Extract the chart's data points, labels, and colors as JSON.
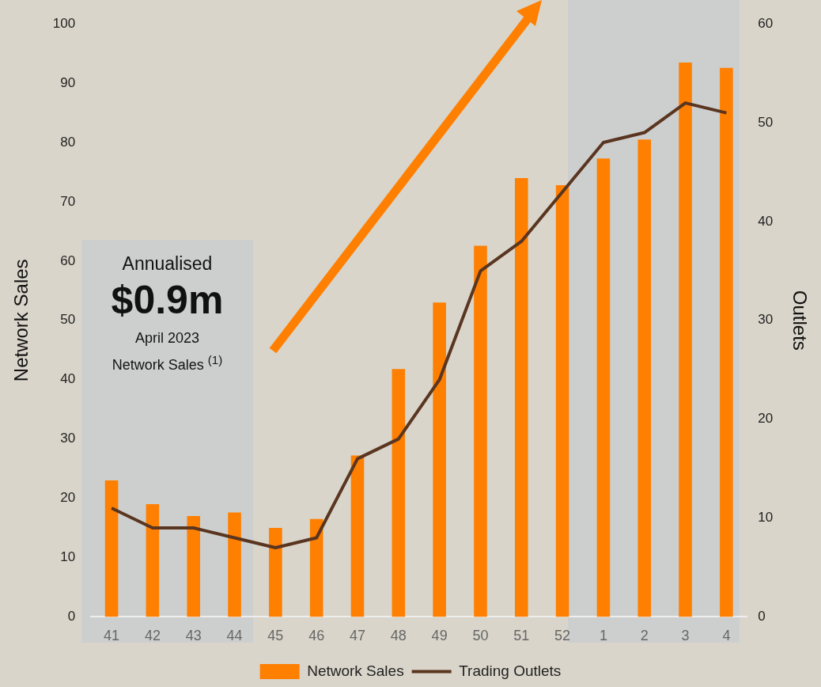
{
  "chart_data": {
    "type": "bar",
    "ylabel": "Network Sales",
    "y2label": "Outlets",
    "categories": [
      "41",
      "42",
      "43",
      "44",
      "45",
      "46",
      "47",
      "48",
      "49",
      "50",
      "51",
      "52",
      "1",
      "2",
      "3",
      "4"
    ],
    "series": [
      {
        "name": "Network Sales",
        "color": "#ff7f00",
        "values": [
          23,
          19,
          17,
          17.6,
          15,
          16.5,
          27.2,
          41.8,
          53,
          62.6,
          74,
          72.8,
          77.3,
          80.5,
          93.5,
          92.6
        ]
      },
      {
        "name": "Trading Outlets",
        "type": "line",
        "axis": "y2",
        "color": "#5a3520",
        "values": [
          11,
          9,
          9,
          8,
          7,
          8,
          16,
          18,
          24,
          35,
          38,
          43,
          48,
          49,
          52,
          51
        ]
      }
    ],
    "ylim": [
      0,
      100
    ],
    "yticks": [
      0,
      10,
      20,
      30,
      40,
      50,
      60,
      70,
      80,
      90,
      100
    ],
    "y2lim": [
      0,
      60
    ],
    "y2ticks": [
      0,
      10,
      20,
      30,
      40,
      50,
      60
    ],
    "annotations": [
      "Annualised",
      "$0.9m",
      "April 2023",
      "Network Sales $^{(1)}$"
    ],
    "legend": "bottom",
    "marker": "none",
    "grid": false
  }
}
